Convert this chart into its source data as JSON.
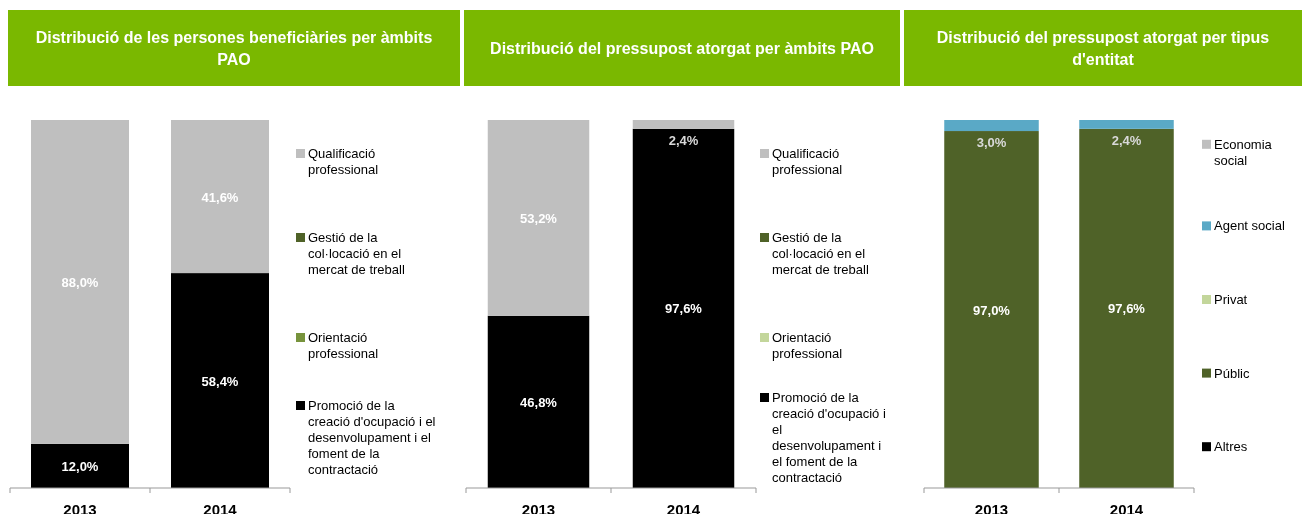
{
  "chart_data": [
    {
      "type": "bar",
      "title": "Distribució de les persones beneficiàries per àmbits PAO",
      "categories": [
        "2013",
        "2014"
      ],
      "stacked": true,
      "ylim": [
        0,
        100
      ],
      "tick_labels": "x",
      "legend": "right",
      "series": [
        {
          "name": "Promoció de la creació d'ocupació i el desenvolupament i el foment de la contractació",
          "color": "#000000",
          "values": [
            12.0,
            58.4
          ],
          "value_labels": [
            "12,0%",
            "58,4%"
          ]
        },
        {
          "name": "Orientació professional",
          "color": "#77933c",
          "values": [
            null,
            null
          ]
        },
        {
          "name": "Gestió de la col·locació en el mercat de treball",
          "color": "#4f6228",
          "values": [
            null,
            null
          ]
        },
        {
          "name": "Qualificació professional",
          "color": "#bfbfbf",
          "values": [
            88.0,
            41.6
          ],
          "value_labels": [
            "88,0%",
            "41,6%"
          ]
        }
      ]
    },
    {
      "type": "bar",
      "title": "Distribució del pressupost atorgat per àmbits PAO",
      "categories": [
        "2013",
        "2014"
      ],
      "stacked": true,
      "ylim": [
        0,
        100
      ],
      "tick_labels": "x",
      "legend": "right",
      "series": [
        {
          "name": "Promoció de la creació d'ocupació i el desenvolupament i el foment de la contractació",
          "color": "#000000",
          "values": [
            46.8,
            97.6
          ],
          "value_labels": [
            "46,8%",
            "97,6%"
          ]
        },
        {
          "name": "Orientació professional",
          "color": "#c3d69b",
          "values": [
            null,
            null
          ]
        },
        {
          "name": "Gestió de la col·locació en el mercat de treball",
          "color": "#4f6228",
          "values": [
            null,
            null
          ]
        },
        {
          "name": "Qualificació professional",
          "color": "#bfbfbf",
          "values": [
            53.2,
            2.4
          ],
          "value_labels": [
            "53,2%",
            "2,4%"
          ]
        }
      ]
    },
    {
      "type": "bar",
      "title": "Distribució del pressupost atorgat per tipus d'entitat",
      "categories": [
        "2013",
        "2014"
      ],
      "stacked": true,
      "ylim": [
        0,
        100
      ],
      "tick_labels": "x",
      "legend": "right",
      "series": [
        {
          "name": "Altres",
          "color": "#000000",
          "values": [
            null,
            null
          ]
        },
        {
          "name": "Públic",
          "color": "#4f6228",
          "values": [
            97.0,
            97.6
          ],
          "value_labels": [
            "97,0%",
            "97,6%"
          ]
        },
        {
          "name": "Privat",
          "color": "#c3d69b",
          "values": [
            null,
            null
          ]
        },
        {
          "name": "Agent social",
          "color": "#5aa9c6",
          "values": [
            3.0,
            2.4
          ],
          "value_labels": [
            "3,0%",
            "2,4%"
          ]
        },
        {
          "name": "Economia social",
          "color": "#bfbfbf",
          "values": [
            null,
            null
          ]
        }
      ]
    }
  ]
}
